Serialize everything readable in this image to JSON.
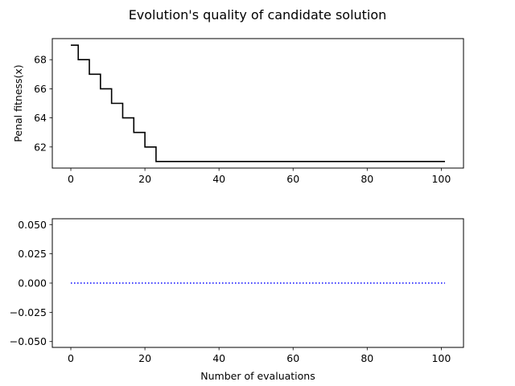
{
  "figure": {
    "title": "Evolution's quality of candidate solution"
  },
  "chart_data": [
    {
      "type": "line",
      "title": "",
      "xlabel": "",
      "ylabel": "Penal fitness(x)",
      "xlim": [
        -5,
        106
      ],
      "ylim": [
        60.55,
        69.45
      ],
      "xticks": [
        0,
        20,
        40,
        60,
        80,
        100
      ],
      "yticks": [
        62,
        64,
        66,
        68
      ],
      "ytick_labels": [
        "62",
        "64",
        "66",
        "68"
      ],
      "grid": false,
      "line_color": "#000000",
      "line_style": "solid",
      "series": [
        {
          "drawstyle": "steps",
          "x": [
            0,
            1,
            2,
            3,
            4,
            5,
            6,
            7,
            8,
            9,
            10,
            11,
            12,
            13,
            14,
            15,
            16,
            17,
            18,
            19,
            20,
            21,
            22,
            23,
            24,
            101
          ],
          "y": [
            69,
            69,
            68,
            68,
            68,
            67,
            67,
            67,
            66,
            66,
            66,
            65,
            65,
            65,
            64,
            64,
            64,
            63,
            63,
            63,
            62,
            62,
            62,
            61,
            61,
            61
          ]
        }
      ]
    },
    {
      "type": "line",
      "title": "",
      "xlabel": "Number of evaluations",
      "ylabel": "",
      "xlim": [
        -5,
        106
      ],
      "ylim": [
        -0.055,
        0.055
      ],
      "xticks": [
        0,
        20,
        40,
        60,
        80,
        100
      ],
      "yticks": [
        -0.05,
        -0.025,
        0.0,
        0.025,
        0.05
      ],
      "ytick_labels": [
        "−0.050",
        "−0.025",
        "0.000",
        "0.025",
        "0.050"
      ],
      "grid": false,
      "line_color": "#0000ff",
      "line_style": "dotted",
      "series": [
        {
          "x": [
            0,
            101
          ],
          "y": [
            0,
            0
          ]
        }
      ]
    }
  ]
}
